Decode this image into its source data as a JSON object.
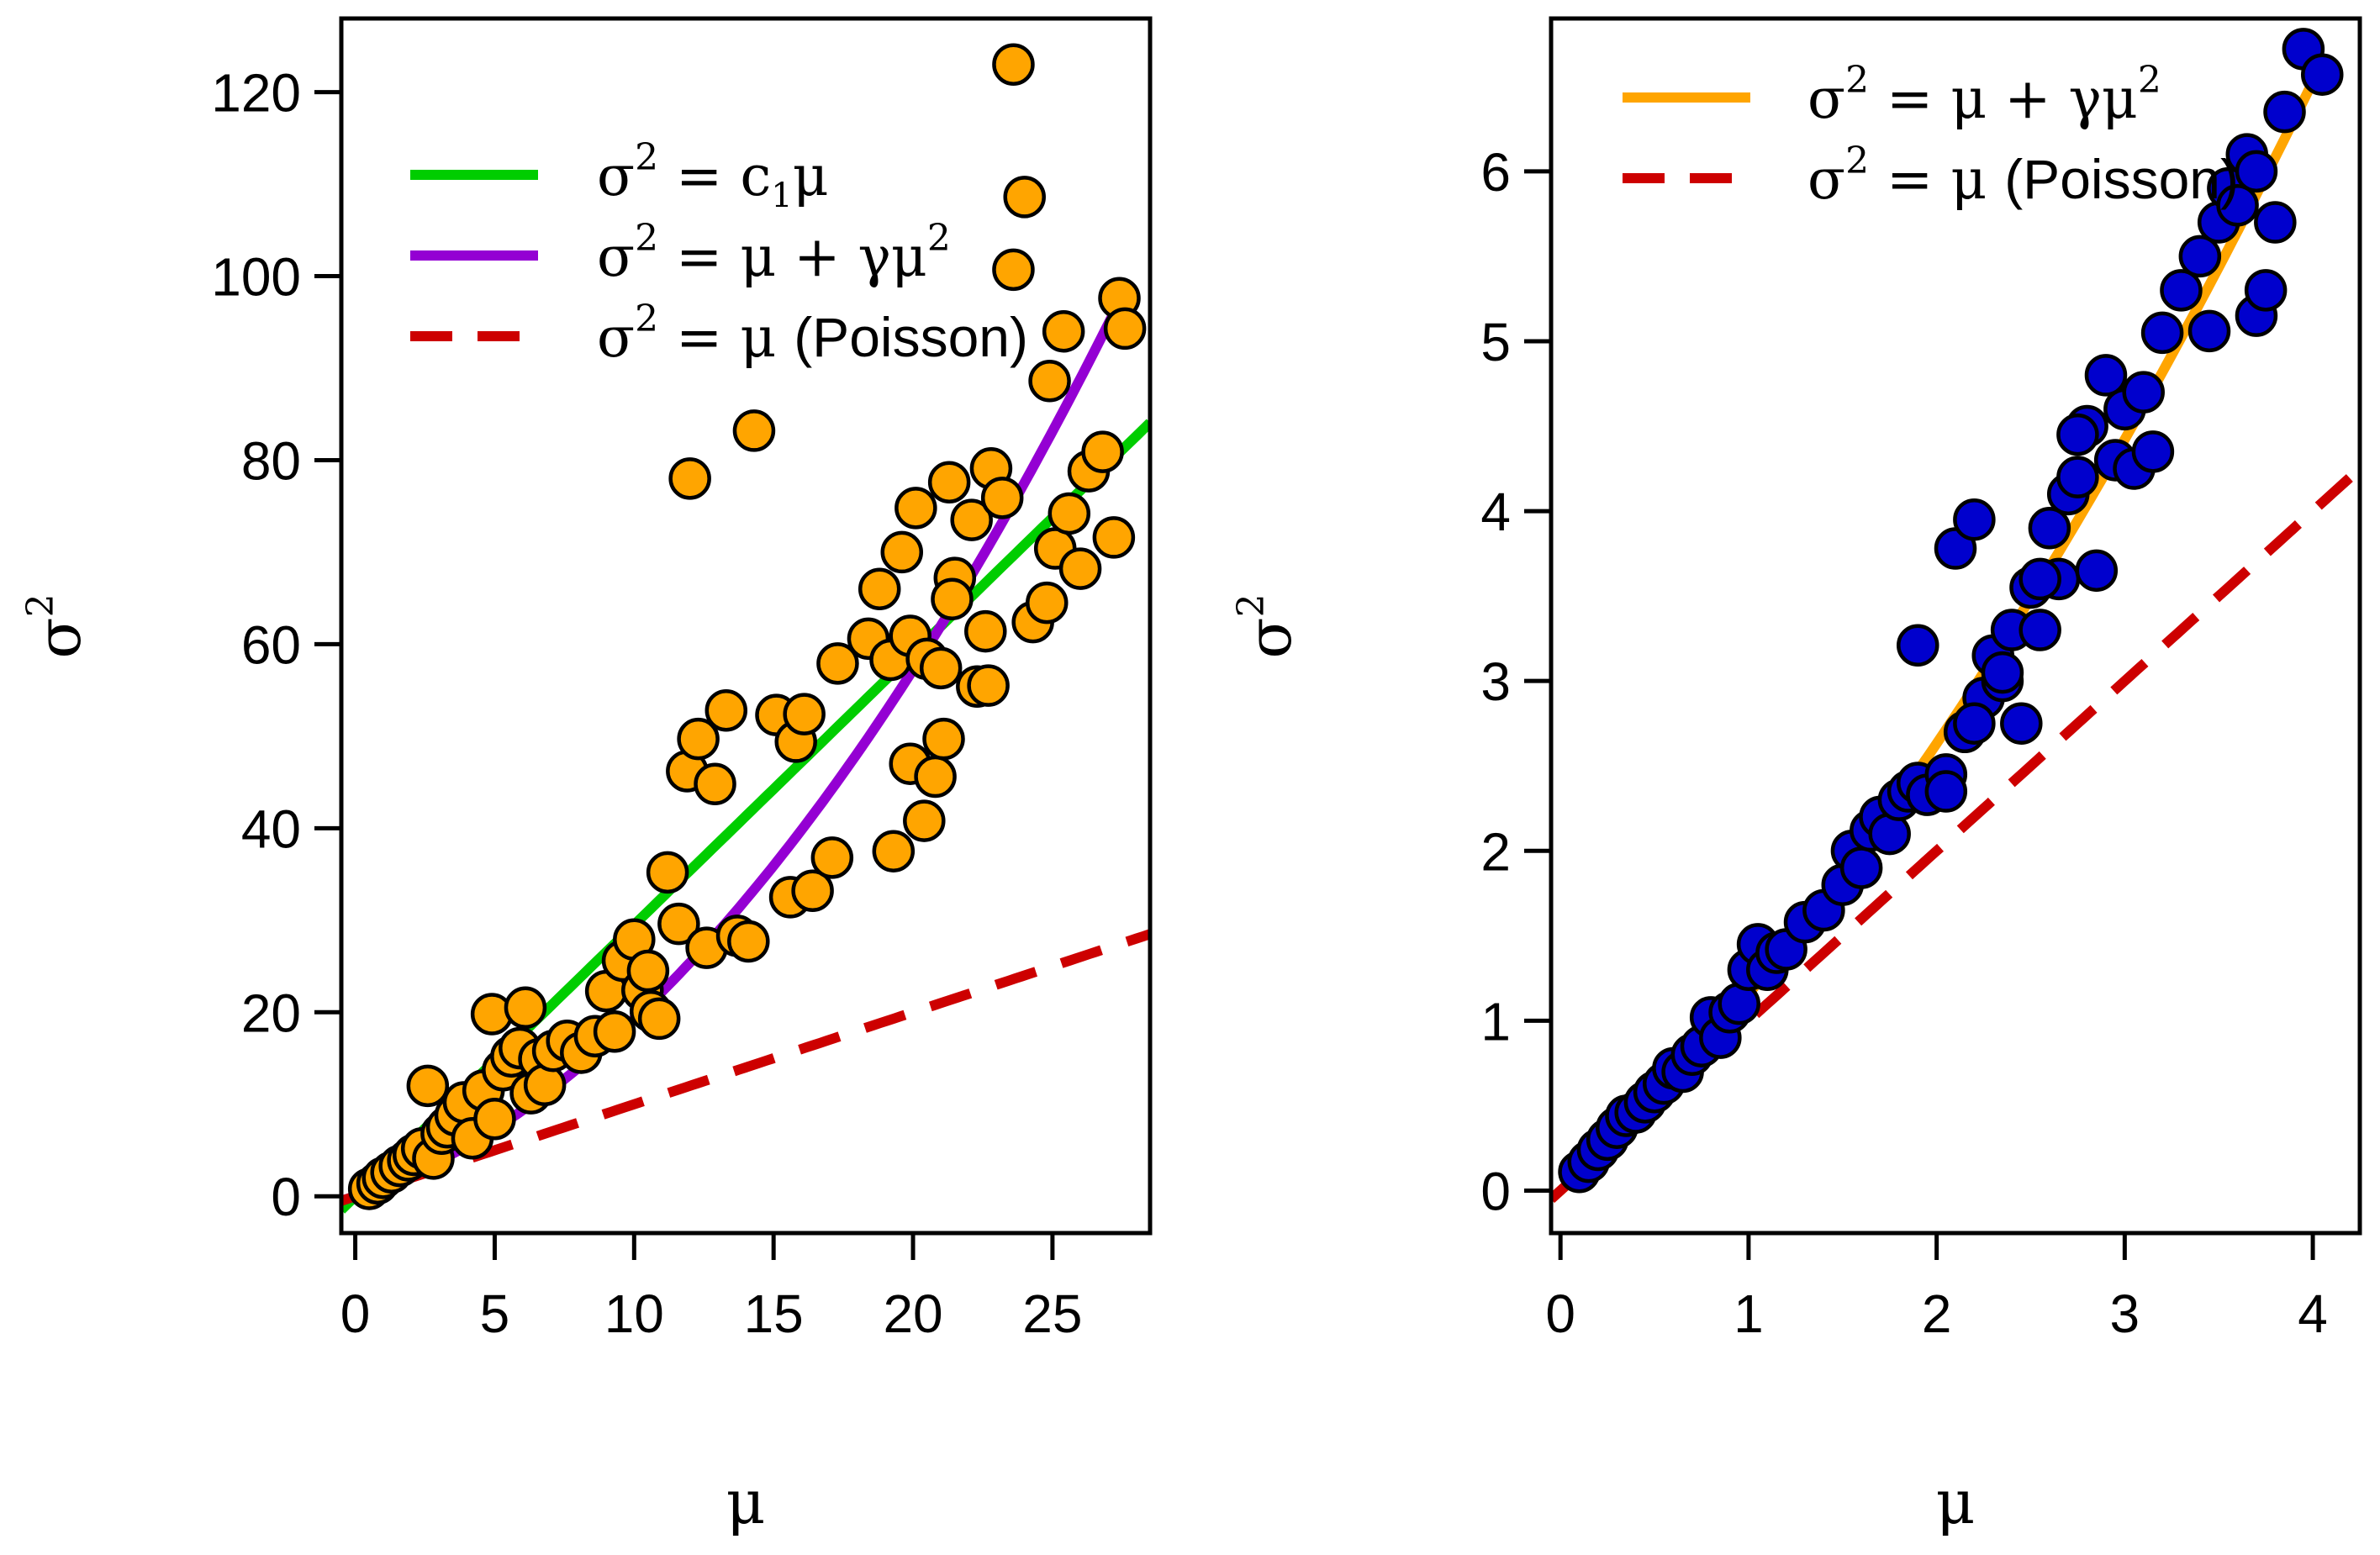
{
  "chart_data": [
    {
      "type": "scatter",
      "title": "",
      "xlabel": "μ",
      "ylabel": "σ²",
      "xlim": [
        -0.5,
        28.5
      ],
      "ylim": [
        -4,
        128
      ],
      "x_ticks": [
        0,
        5,
        10,
        15,
        20,
        25
      ],
      "y_ticks": [
        0,
        20,
        40,
        60,
        80,
        100,
        120
      ],
      "x_tick_labels": [
        "0",
        "5",
        "10",
        "15",
        "20",
        "25"
      ],
      "y_tick_labels": [
        "0",
        "20",
        "40",
        "60",
        "80",
        "100",
        "120"
      ],
      "grid": false,
      "legend_position": "top-left",
      "point_color": "#FFA500",
      "points": {
        "x": [
          0.5,
          0.8,
          1.0,
          1.3,
          1.6,
          1.9,
          2.1,
          2.4,
          2.6,
          2.8,
          3.1,
          3.3,
          3.6,
          3.9,
          4.2,
          4.6,
          4.9,
          5.0,
          5.3,
          5.6,
          5.9,
          6.1,
          6.3,
          6.6,
          6.8,
          7.1,
          7.6,
          8.1,
          8.6,
          9.0,
          9.3,
          9.6,
          10.0,
          10.3,
          10.5,
          10.6,
          10.9,
          11.2,
          11.6,
          11.9,
          12.3,
          12.6,
          12.9,
          13.3,
          13.7,
          14.1,
          14.3,
          15.1,
          15.6,
          15.8,
          16.1,
          16.4,
          17.1,
          17.3,
          18.4,
          18.8,
          19.2,
          19.6,
          19.9,
          20.1,
          20.4,
          20.8,
          21.1,
          21.3,
          21.5,
          22.1,
          22.3,
          22.6,
          22.8,
          23.2,
          23.6,
          24.0,
          24.3,
          24.8,
          25.1,
          25.6,
          26.0,
          26.3,
          26.8,
          27.2,
          27.4,
          27.6,
          19.3,
          19.9,
          20.5,
          21.0,
          22.7,
          23.6,
          24.9,
          25.4,
          12.0,
          21.4
        ],
        "y": [
          0.8,
          1.4,
          2.0,
          2.6,
          3.3,
          3.9,
          4.5,
          5.2,
          12.0,
          4.1,
          6.8,
          7.5,
          8.8,
          10.2,
          6.3,
          11.5,
          19.8,
          8.4,
          13.7,
          15.2,
          16.1,
          20.5,
          11.2,
          14.9,
          12.1,
          15.8,
          16.9,
          15.6,
          17.4,
          22.3,
          17.9,
          25.6,
          27.9,
          22.4,
          24.5,
          20.1,
          19.3,
          35.2,
          29.6,
          46.2,
          49.7,
          27.0,
          44.8,
          52.8,
          28.3,
          27.7,
          83.2,
          52.3,
          32.5,
          49.4,
          52.4,
          33.2,
          36.8,
          57.9,
          60.6,
          66.0,
          58.3,
          70.0,
          47.0,
          74.8,
          40.8,
          45.6,
          49.7,
          77.6,
          67.2,
          73.5,
          55.4,
          61.4,
          79.1,
          75.9,
          100.7,
          108.6,
          62.4,
          64.5,
          70.4,
          74.2,
          68.2,
          78.8,
          80.9,
          71.6,
          97.6,
          94.3,
          37.5,
          60.9,
          58.4,
          57.4,
          55.5,
          123.0,
          88.6,
          94.0,
          78.0,
          64.9
        ]
      },
      "series": [
        {
          "name": "σ² = c₁μ",
          "color": "#00CD00",
          "style": "solid",
          "model": "linear",
          "c1": 2.95
        },
        {
          "name": "σ² = μ + γμ²",
          "color": "#9400D3",
          "style": "solid",
          "model": "quadratic",
          "gamma": 0.093
        },
        {
          "name": "σ² = μ (Poisson)",
          "color": "#CD0000",
          "style": "dashed",
          "model": "poisson"
        }
      ]
    },
    {
      "type": "scatter",
      "title": "",
      "xlabel": "μ",
      "ylabel": "σ²",
      "xlim": [
        -0.05,
        4.25
      ],
      "ylim": [
        -0.25,
        6.9
      ],
      "x_ticks": [
        0,
        1,
        2,
        3,
        4
      ],
      "y_ticks": [
        0,
        1,
        2,
        3,
        4,
        5,
        6
      ],
      "x_tick_labels": [
        "0",
        "1",
        "2",
        "3",
        "4"
      ],
      "y_tick_labels": [
        "0",
        "1",
        "2",
        "3",
        "4",
        "5",
        "6"
      ],
      "grid": false,
      "legend_position": "top-left",
      "point_color": "#0000CD",
      "points": {
        "x": [
          0.1,
          0.15,
          0.2,
          0.25,
          0.3,
          0.35,
          0.4,
          0.45,
          0.5,
          0.55,
          0.6,
          0.65,
          0.7,
          0.75,
          0.8,
          0.85,
          0.9,
          0.95,
          1.0,
          1.05,
          1.1,
          1.15,
          1.2,
          1.3,
          1.4,
          1.5,
          1.55,
          1.6,
          1.65,
          1.7,
          1.75,
          1.8,
          1.85,
          1.9,
          1.95,
          2.05,
          2.1,
          2.15,
          2.2,
          2.25,
          2.3,
          2.35,
          2.4,
          2.45,
          2.5,
          2.55,
          2.6,
          2.65,
          2.7,
          2.75,
          2.8,
          2.85,
          2.9,
          2.95,
          3.0,
          3.05,
          3.1,
          3.2,
          3.3,
          3.4,
          3.45,
          3.5,
          3.55,
          3.6,
          3.65,
          3.7,
          3.75,
          3.8,
          3.85,
          3.95,
          4.05,
          1.9,
          2.05,
          2.2,
          2.35,
          2.55,
          2.75,
          3.15,
          3.7
        ],
        "y": [
          0.11,
          0.17,
          0.24,
          0.3,
          0.37,
          0.44,
          0.46,
          0.52,
          0.58,
          0.63,
          0.72,
          0.7,
          0.8,
          0.85,
          1.02,
          0.9,
          1.05,
          1.1,
          1.3,
          1.45,
          1.3,
          1.4,
          1.42,
          1.58,
          1.65,
          1.8,
          2.0,
          1.9,
          2.12,
          2.2,
          2.1,
          2.3,
          2.35,
          2.4,
          2.33,
          2.45,
          3.78,
          2.7,
          3.95,
          2.9,
          3.15,
          3.0,
          3.3,
          2.75,
          3.55,
          3.3,
          3.9,
          3.6,
          4.1,
          4.2,
          4.5,
          3.65,
          4.8,
          4.3,
          4.6,
          4.25,
          4.7,
          5.05,
          5.3,
          5.5,
          5.06,
          5.7,
          5.9,
          5.8,
          6.1,
          5.15,
          5.3,
          5.7,
          6.35,
          6.72,
          6.57,
          3.21,
          2.35,
          2.75,
          3.05,
          3.6,
          4.45,
          4.35,
          6.0
        ]
      },
      "series": [
        {
          "name": "σ² = μ + γμ²",
          "color": "#FFA500",
          "style": "solid",
          "model": "quadratic",
          "gamma": 0.158
        },
        {
          "name": "σ² = μ (Poisson)",
          "color": "#CD0000",
          "style": "dashed",
          "model": "poisson"
        }
      ]
    }
  ],
  "legends": [
    {
      "entries": [
        {
          "sym": "σ",
          "sup": "2",
          "eq": " = c",
          "sub": "1",
          "tail": "μ"
        },
        {
          "sym": "σ",
          "sup": "2",
          "eq": " = μ + γμ",
          "sup2": "2",
          "tail": ""
        },
        {
          "sym": "σ",
          "sup": "2",
          "eq": " = μ ",
          "tail": "(Poisson)"
        }
      ]
    },
    {
      "entries": [
        {
          "sym": "σ",
          "sup": "2",
          "eq": " = μ + γμ",
          "sup2": "2",
          "tail": ""
        },
        {
          "sym": "σ",
          "sup": "2",
          "eq": " = μ ",
          "tail": "(Poisson)"
        }
      ]
    }
  ],
  "axis_titles": {
    "left_x": "μ",
    "left_y_base": "σ",
    "left_y_sup": "2",
    "right_x": "μ",
    "right_y_base": "σ",
    "right_y_sup": "2"
  }
}
